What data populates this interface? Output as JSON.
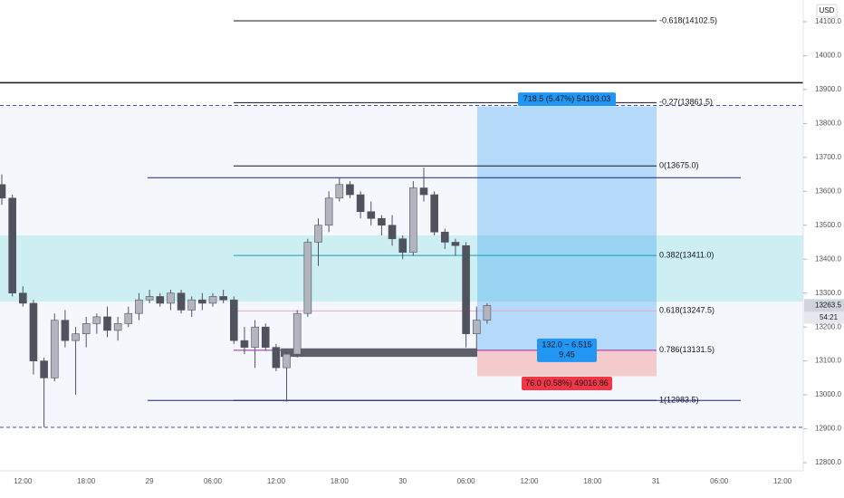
{
  "chart_data": {
    "type": "candlestick",
    "currency": "USD",
    "open": [
      13620,
      13580,
      13300,
      13270,
      13100,
      13050,
      13220,
      13160,
      13180,
      13210,
      13230,
      13190,
      13210,
      13240,
      13280,
      13290,
      13270,
      13300,
      13250,
      13280,
      13270,
      13290,
      13280,
      13160,
      13140,
      13200,
      13140,
      13080,
      13120,
      13240,
      13450,
      13500,
      13580,
      13620,
      13590,
      13540,
      13520,
      13500,
      13460,
      13420,
      13610,
      13590,
      13480,
      13450,
      13440,
      13180,
      13220
    ],
    "high": [
      13650,
      13590,
      13320,
      13280,
      13110,
      13240,
      13250,
      13200,
      13230,
      13240,
      13260,
      13230,
      13260,
      13300,
      13310,
      13300,
      13310,
      13310,
      13290,
      13300,
      13300,
      13310,
      13290,
      13200,
      13220,
      13210,
      13150,
      13130,
      13250,
      13460,
      13520,
      13600,
      13640,
      13630,
      13600,
      13570,
      13530,
      13530,
      13470,
      13630,
      13670,
      13600,
      13490,
      13460,
      13450,
      13260,
      13270
    ],
    "low": [
      13560,
      13290,
      13260,
      13060,
      12905,
      13040,
      13140,
      13000,
      13140,
      13180,
      13170,
      13160,
      13200,
      13220,
      13270,
      13260,
      13250,
      13240,
      13230,
      13250,
      13260,
      13270,
      13150,
      13120,
      13080,
      13130,
      13070,
      12980,
      13110,
      13230,
      13380,
      13480,
      13570,
      13580,
      13520,
      13500,
      13470,
      13440,
      13400,
      13410,
      13570,
      13470,
      13430,
      13410,
      13140,
      13130,
      13210
    ],
    "close": [
      13580,
      13300,
      13270,
      13100,
      13050,
      13220,
      13160,
      13180,
      13210,
      13230,
      13190,
      13210,
      13240,
      13280,
      13290,
      13270,
      13300,
      13250,
      13280,
      13270,
      13290,
      13280,
      13160,
      13140,
      13200,
      13140,
      13080,
      13120,
      13240,
      13450,
      13500,
      13580,
      13620,
      13590,
      13540,
      13520,
      13500,
      13460,
      13420,
      13610,
      13590,
      13480,
      13450,
      13440,
      13180,
      13220,
      13263.5
    ],
    "up_color": "#b2b5be",
    "down_color": "#50535e",
    "xticks": [
      "12:00",
      "18:00",
      "29",
      "06:00",
      "12:00",
      "18:00",
      "30",
      "06:00",
      "12:00",
      "18:00",
      "31",
      "06:00",
      "12:00"
    ],
    "ylim": [
      12776,
      14164
    ],
    "yticks": [
      {
        "value": 14100,
        "label": "14100.0"
      },
      {
        "value": 14000,
        "label": "14000.0"
      },
      {
        "value": 13900,
        "label": "13900.0"
      },
      {
        "value": 13800,
        "label": "13800.0"
      },
      {
        "value": 13700,
        "label": "13700.0"
      },
      {
        "value": 13600,
        "label": "13600.0"
      },
      {
        "value": 13500,
        "label": "13500.0"
      },
      {
        "value": 13400,
        "label": "13400.0"
      },
      {
        "value": 13300,
        "label": "13300.0"
      },
      {
        "value": 13200,
        "label": "13200.0"
      },
      {
        "value": 13100,
        "label": "13100.0"
      },
      {
        "value": 13000,
        "label": "13000.0"
      },
      {
        "value": 12900,
        "label": "12900.0"
      },
      {
        "value": 12800,
        "label": "12800.0"
      }
    ],
    "last_price": 13263.5,
    "countdown": "54:21",
    "fib_levels": [
      {
        "label": "-0.618(14102.5)",
        "value": 14102.5,
        "color": "#131722"
      },
      {
        "label": "-0.27(13861.5)",
        "value": 13861.5,
        "color": "#131722"
      },
      {
        "label": "0(13675.0)",
        "value": 13675.0,
        "color": "#131722"
      },
      {
        "label": "0.382(13411.0)",
        "value": 13411.0,
        "color": "#2196b6"
      },
      {
        "label": "0.618(13247.5)",
        "value": 13247.5,
        "color": "#e8a8c8"
      },
      {
        "label": "0.786(13131.5)",
        "value": 13131.5,
        "color": "#9c27b0"
      },
      {
        "label": "1(12983.5)",
        "value": 12983.5,
        "color": "#1a237e"
      }
    ],
    "ray_lines": [
      13640,
      12983.5
    ],
    "solid_line": 13920,
    "dashed_lines": [
      13853,
      12904
    ],
    "zone": [
      13470,
      13275
    ],
    "dark_zone": [
      13137,
      13112
    ],
    "position": {
      "target": 13850,
      "entry": 13131.5,
      "stop": 13055,
      "target_label": "718.5 (5.47%) 54193.03",
      "mid_label": [
        "132.0 ~ 6.515",
        "9.45"
      ],
      "stop_label": "76.0 (0.58%) 49016.86"
    }
  }
}
